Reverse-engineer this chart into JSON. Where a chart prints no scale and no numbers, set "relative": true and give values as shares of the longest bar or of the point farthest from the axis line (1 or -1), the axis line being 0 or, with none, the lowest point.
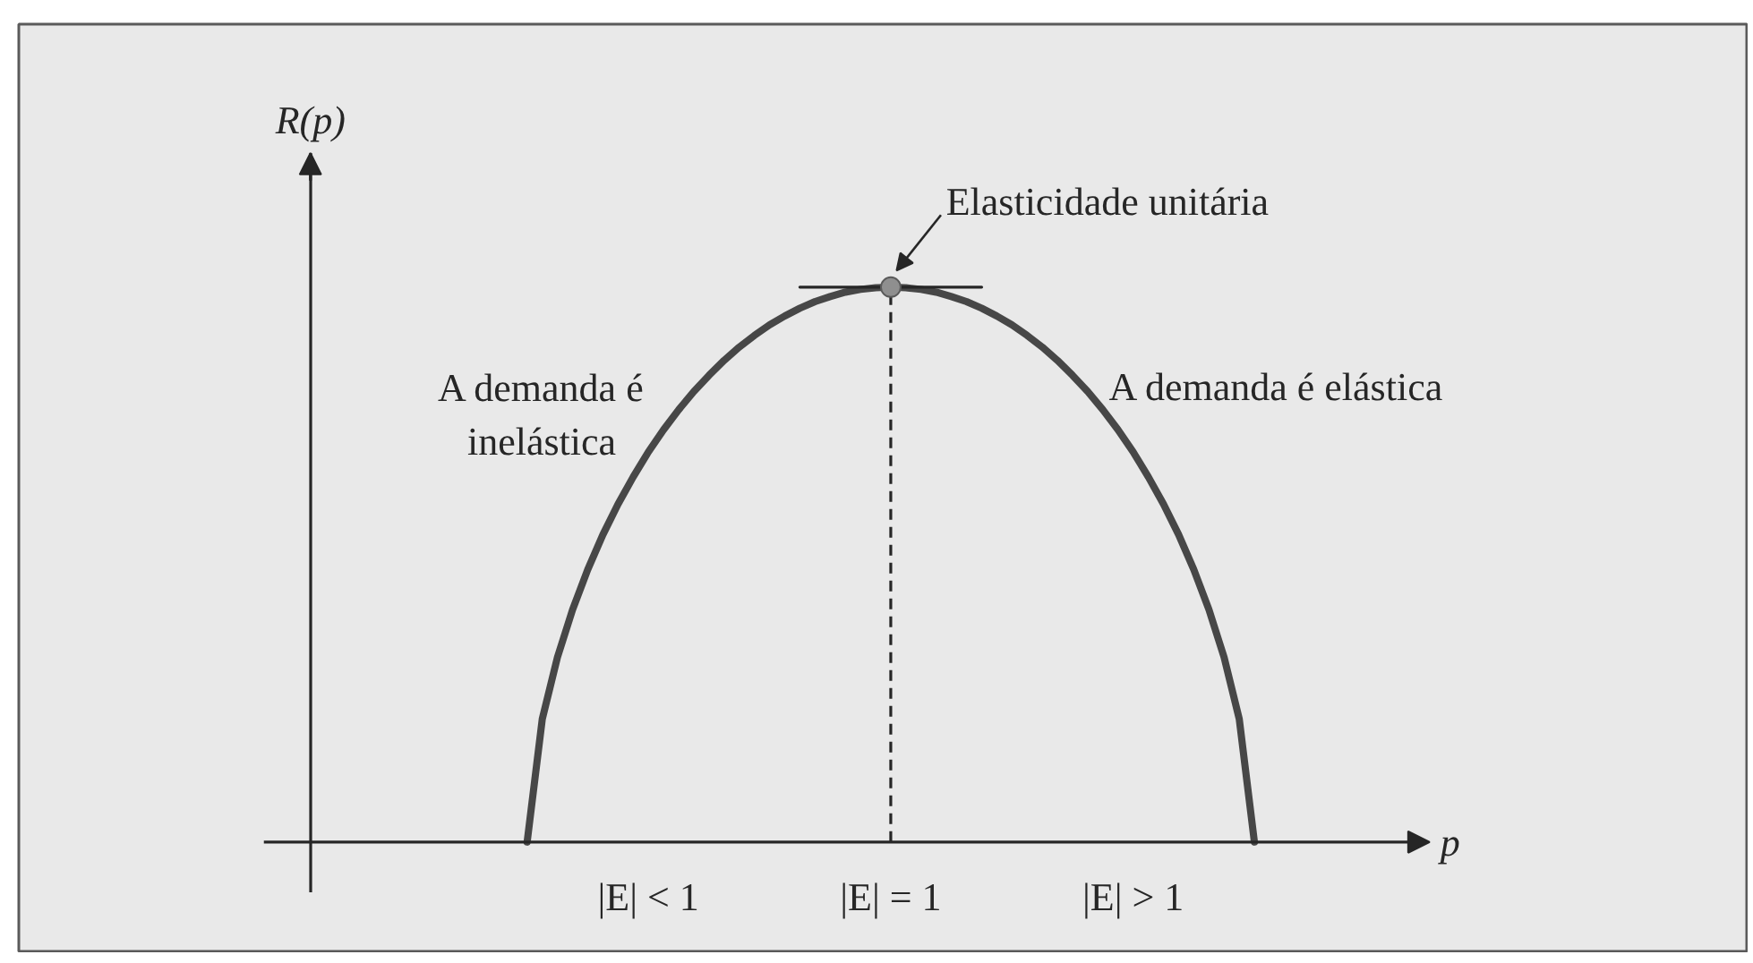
{
  "chart_data": {
    "type": "line",
    "relative": true,
    "xlabel": "p",
    "categories": [
      null,
      null,
      null,
      null,
      null,
      null,
      null,
      null,
      "|E| < 1",
      null,
      null,
      null,
      null,
      null,
      null,
      null,
      null,
      null,
      null,
      null,
      null,
      null,
      null,
      null,
      "|E| = 1",
      null,
      null,
      null,
      null,
      null,
      null,
      null,
      null,
      null,
      null,
      null,
      null,
      null,
      null,
      null,
      "|E| > 1",
      null,
      null,
      null,
      null,
      null,
      null,
      null,
      null
    ],
    "series": [
      {
        "color": "#474747",
        "values": [
          0,
          0.222,
          0.333,
          0.419,
          0.491,
          0.554,
          0.609,
          0.658,
          0.703,
          0.743,
          0.779,
          0.812,
          0.841,
          0.868,
          0.892,
          0.913,
          0.932,
          0.948,
          0.962,
          0.974,
          0.983,
          0.991,
          0.996,
          0.999,
          1,
          0.999,
          0.996,
          0.991,
          0.983,
          0.974,
          0.962,
          0.948,
          0.932,
          0.913,
          0.892,
          0.868,
          0.841,
          0.812,
          0.779,
          0.743,
          0.703,
          0.658,
          0.609,
          0.554,
          0.491,
          0.419,
          0.333,
          0.222,
          0
        ]
      },
      {
        "type": "line",
        "color": "#262626",
        "values": [
          null,
          null,
          null,
          null,
          null,
          null,
          null,
          null,
          null,
          null,
          null,
          null,
          null,
          null,
          null,
          null,
          null,
          null,
          1,
          1,
          1,
          1,
          1,
          1,
          1,
          1,
          1,
          1,
          1,
          1,
          1,
          null,
          null,
          null,
          null,
          null,
          null,
          null,
          null,
          null,
          null,
          null,
          null,
          null,
          null,
          null,
          null,
          null,
          null
        ]
      },
      {
        "type": "lollipop",
        "marker": "circle",
        "line_style": "dashed",
        "color": "#8f8f8f",
        "values": [
          null,
          null,
          null,
          null,
          null,
          null,
          null,
          null,
          null,
          null,
          null,
          null,
          null,
          null,
          null,
          null,
          null,
          null,
          null,
          null,
          null,
          null,
          null,
          null,
          1,
          null,
          null,
          null,
          null,
          null,
          null,
          null,
          null,
          null,
          null,
          null,
          null,
          null,
          null,
          null,
          null,
          null,
          null,
          null,
          null,
          null,
          null,
          null,
          null
        ]
      }
    ],
    "annotations": [
      "R(p)",
      {
        "text": "Elasticidade unitária",
        "x": "|E| = 1",
        "y": 1
      },
      "A demanda é inelástica",
      "A demanda é elástica"
    ]
  }
}
